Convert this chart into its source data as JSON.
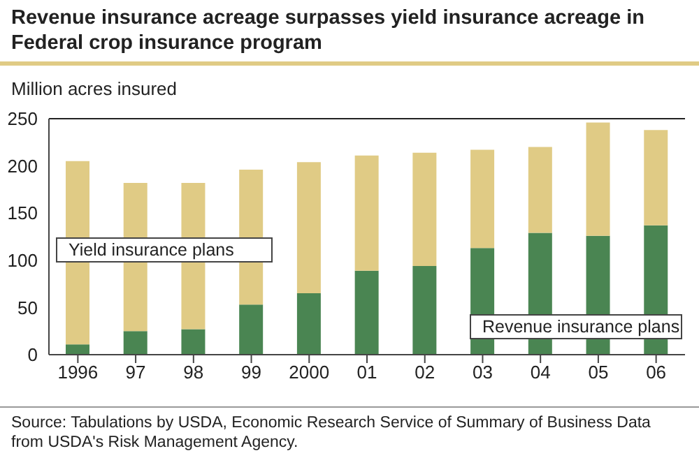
{
  "chart_data": {
    "type": "bar",
    "title": "Revenue insurance acreage surpasses yield insurance acreage in Federal crop insurance program",
    "ylabel": "Million acres insured",
    "categories": [
      "1996",
      "97",
      "98",
      "99",
      "2000",
      "01",
      "02",
      "03",
      "04",
      "05",
      "06"
    ],
    "series": [
      {
        "name": "Revenue insurance plans",
        "color": "#4a8552",
        "values": [
          11,
          25,
          27,
          53,
          65,
          89,
          94,
          113,
          129,
          126,
          137
        ]
      },
      {
        "name": "Yield insurance plans",
        "color": "#e0cb85",
        "values": [
          194,
          157,
          155,
          143,
          139,
          122,
          120,
          104,
          91,
          120,
          101
        ]
      }
    ],
    "stacked": true,
    "ylim": [
      0,
      250
    ],
    "yticks": [
      0,
      50,
      100,
      150,
      200,
      250
    ],
    "grid": false,
    "legend": false,
    "annotations": [
      "Source:  Tabulations by USDA, Economic Research Service of Summary of Business Data from USDA's Risk Management Agency."
    ]
  }
}
